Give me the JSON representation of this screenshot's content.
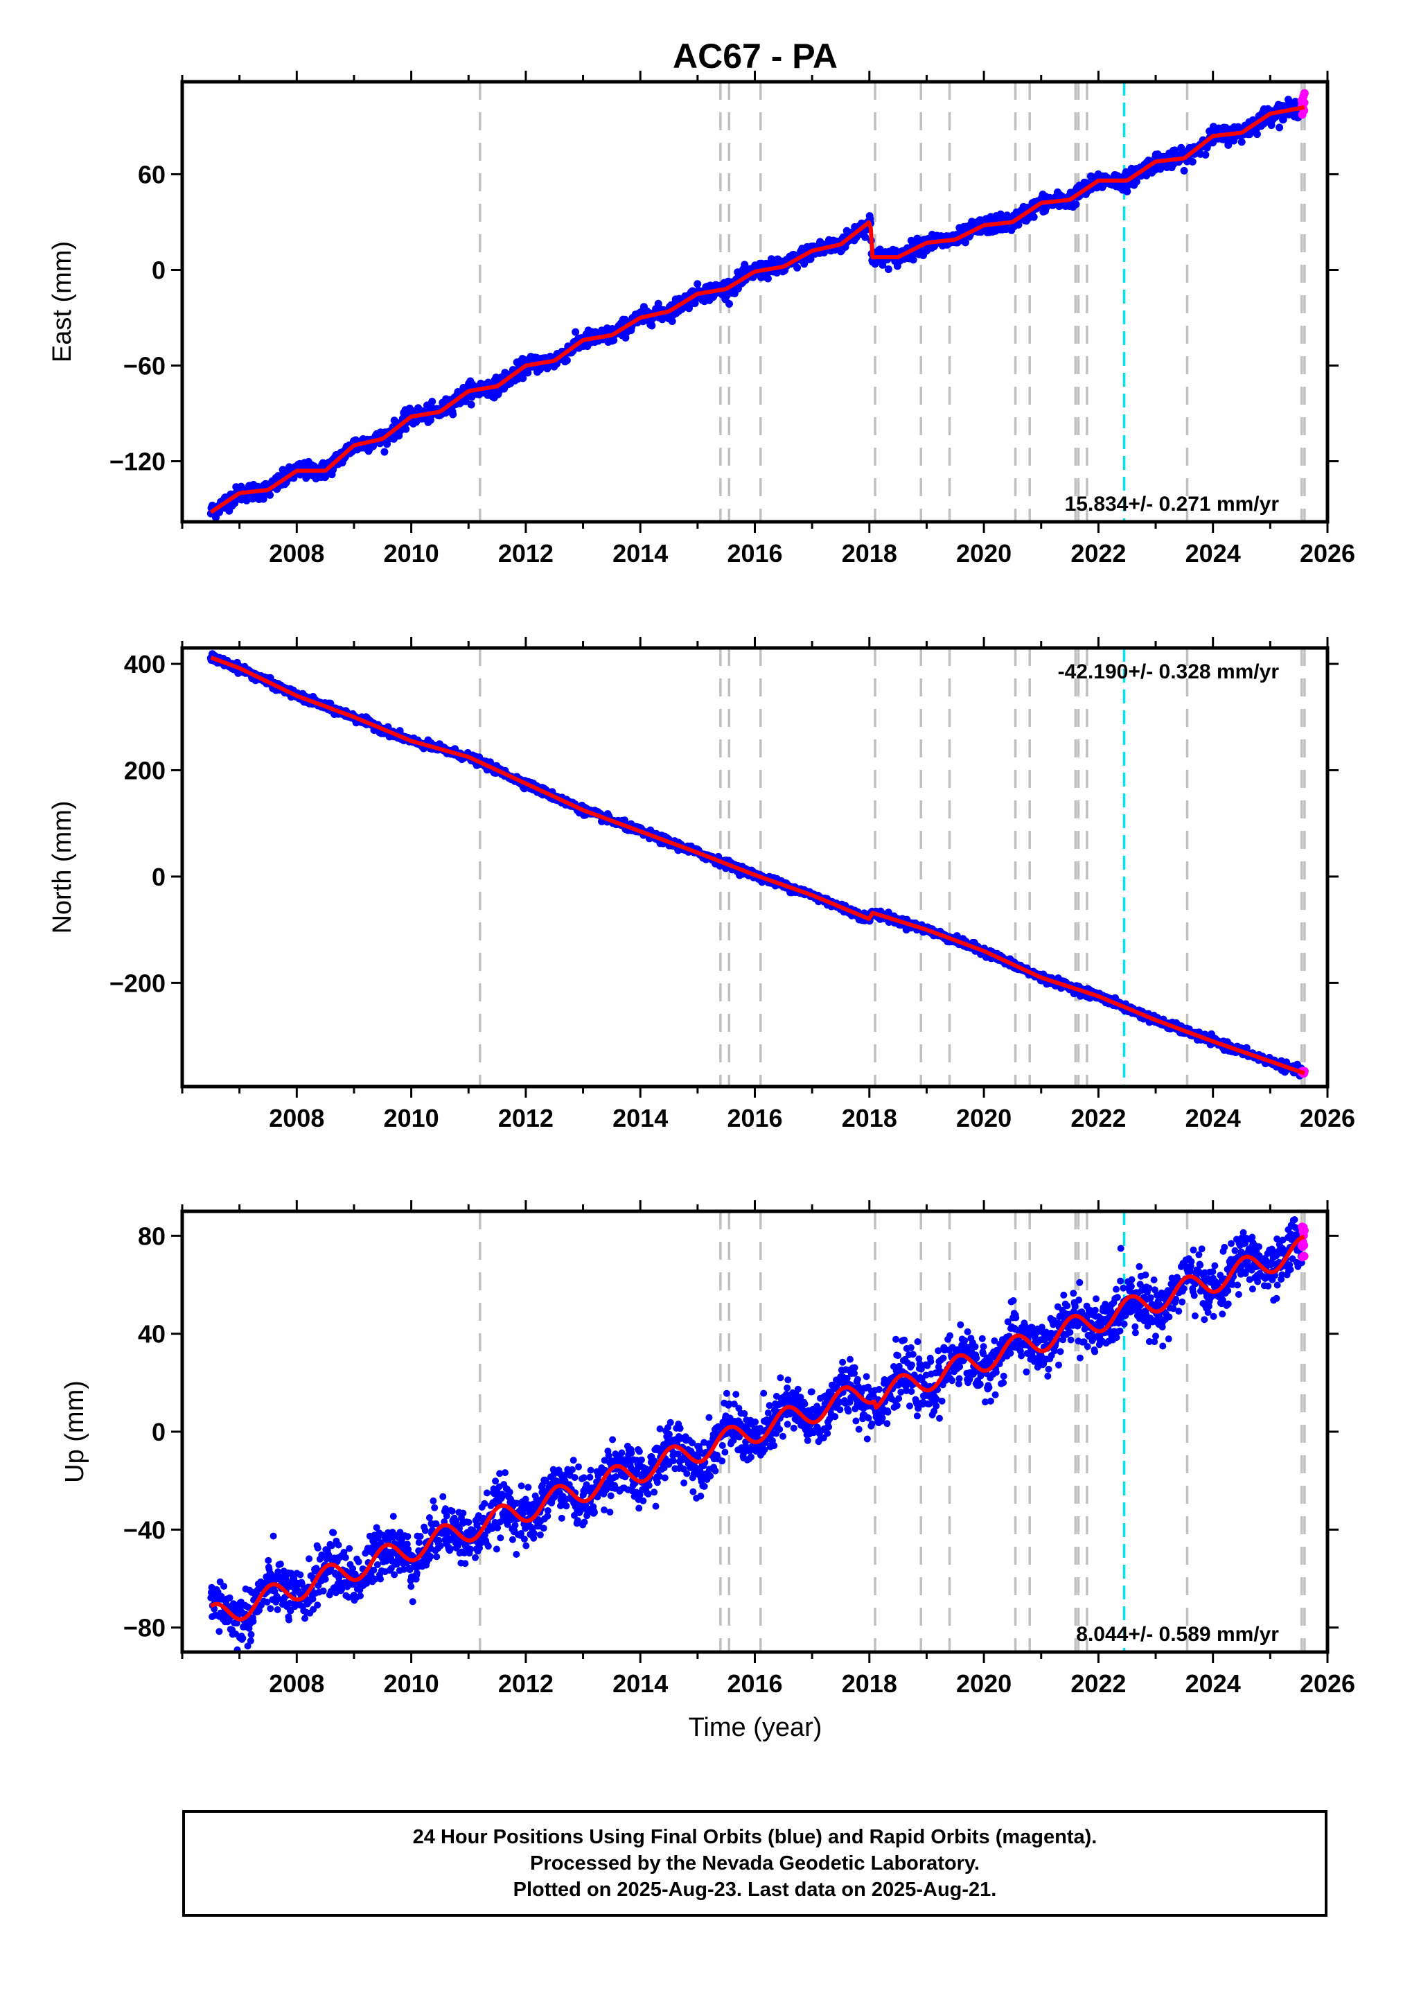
{
  "title": "AC67 - PA",
  "xlabel": "Time (year)",
  "colors": {
    "final_orbits": "#0000ff",
    "rapid_orbits": "#ff00ff",
    "model_fit": "#ff0000",
    "equipment_change": "#c0c0c0",
    "earthquake_event": "#00e5ee"
  },
  "footer": {
    "line1": "24 Hour Positions Using Final Orbits (blue) and Rapid Orbits (magenta).",
    "line2": "Processed by the Nevada Geodetic Laboratory.",
    "line3": "Plotted on 2025-Aug-23. Last data on 2025-Aug-21."
  },
  "chart_data": [
    {
      "type": "scatter",
      "component": "east",
      "ylabel": "East (mm)",
      "rate_label": "15.834+/- 0.271 mm/yr",
      "rate_position": "bottom-right",
      "xlim": [
        2006.0,
        2026.0
      ],
      "ylim": [
        -158,
        118
      ],
      "xticks": [
        2008,
        2010,
        2012,
        2014,
        2016,
        2018,
        2020,
        2022,
        2024,
        2026
      ],
      "yticks": [
        -120,
        -60,
        0,
        60
      ],
      "trend": [
        [
          2006.5,
          -152
        ],
        [
          2007.0,
          -140
        ],
        [
          2007.5,
          -138
        ],
        [
          2008.0,
          -126
        ],
        [
          2008.5,
          -126
        ],
        [
          2009.0,
          -110
        ],
        [
          2009.5,
          -106
        ],
        [
          2010.0,
          -92
        ],
        [
          2010.5,
          -89
        ],
        [
          2011.0,
          -76
        ],
        [
          2011.5,
          -73
        ],
        [
          2012.0,
          -60
        ],
        [
          2012.5,
          -57
        ],
        [
          2013.0,
          -44
        ],
        [
          2013.5,
          -41
        ],
        [
          2014.0,
          -30
        ],
        [
          2014.5,
          -26
        ],
        [
          2015.0,
          -15
        ],
        [
          2015.5,
          -12
        ],
        [
          2016.0,
          -1
        ],
        [
          2016.5,
          2
        ],
        [
          2017.0,
          12
        ],
        [
          2017.5,
          16
        ],
        [
          2018.0,
          30
        ],
        [
          2018.02,
          30
        ],
        [
          2018.04,
          8
        ],
        [
          2018.5,
          8
        ],
        [
          2019.0,
          17
        ],
        [
          2019.5,
          19
        ],
        [
          2020.0,
          28
        ],
        [
          2020.5,
          30
        ],
        [
          2021.0,
          42
        ],
        [
          2021.5,
          44
        ],
        [
          2022.0,
          56
        ],
        [
          2022.5,
          56
        ],
        [
          2023.0,
          68
        ],
        [
          2023.5,
          70
        ],
        [
          2024.0,
          84
        ],
        [
          2024.5,
          86
        ],
        [
          2025.0,
          98
        ],
        [
          2025.6,
          102
        ]
      ],
      "scatter_sd": 2.6,
      "rapid_y": [
        96,
        112
      ]
    },
    {
      "type": "scatter",
      "component": "north",
      "ylabel": "North (mm)",
      "rate_label": "-42.190+/- 0.328 mm/yr",
      "rate_position": "top-right",
      "xlim": [
        2006.0,
        2026.0
      ],
      "ylim": [
        -395,
        430
      ],
      "xticks": [
        2008,
        2010,
        2012,
        2014,
        2016,
        2018,
        2020,
        2022,
        2024,
        2026
      ],
      "yticks": [
        -200,
        0,
        200,
        400
      ],
      "trend": [
        [
          2006.5,
          412
        ],
        [
          2007.0,
          392
        ],
        [
          2008.0,
          340
        ],
        [
          2009.0,
          300
        ],
        [
          2010.0,
          255
        ],
        [
          2011.0,
          225
        ],
        [
          2012.0,
          175
        ],
        [
          2013.0,
          125
        ],
        [
          2014.0,
          85
        ],
        [
          2015.0,
          45
        ],
        [
          2016.0,
          3
        ],
        [
          2017.0,
          -35
        ],
        [
          2018.0,
          -80
        ],
        [
          2018.05,
          -68
        ],
        [
          2019.0,
          -100
        ],
        [
          2020.0,
          -140
        ],
        [
          2021.0,
          -190
        ],
        [
          2022.0,
          -225
        ],
        [
          2023.0,
          -270
        ],
        [
          2024.0,
          -310
        ],
        [
          2025.6,
          -370
        ]
      ],
      "scatter_sd": 3.5,
      "rapid_y": [
        -372,
        -365
      ]
    },
    {
      "type": "scatter",
      "component": "up",
      "ylabel": "Up (mm)",
      "rate_label": "8.044+/- 0.589 mm/yr",
      "rate_position": "bottom-right",
      "xlim": [
        2006.0,
        2026.0
      ],
      "ylim": [
        -90,
        90
      ],
      "xticks": [
        2008,
        2010,
        2012,
        2014,
        2016,
        2018,
        2020,
        2022,
        2024,
        2026
      ],
      "yticks": [
        -80,
        -40,
        0,
        40,
        80
      ],
      "trend_linear": {
        "start_year": 2006.5,
        "start_value": -76,
        "rate": 8.044
      },
      "seasonal_amplitude": 5,
      "trend_steps": [
        [
          2018.1,
          -3
        ]
      ],
      "scatter_sd": 5.5,
      "rapid_y": [
        70,
        84
      ]
    }
  ],
  "event_lines": {
    "gray": [
      2011.2,
      2015.4,
      2015.55,
      2016.1,
      2018.1,
      2018.9,
      2019.4,
      2020.55,
      2020.8,
      2021.6,
      2021.65,
      2021.8,
      2023.55,
      2025.55,
      2025.6
    ],
    "cyan": [
      2022.45
    ]
  },
  "data_range": {
    "start": 2006.5,
    "end": 2025.6,
    "rapid_start": 2025.55
  }
}
